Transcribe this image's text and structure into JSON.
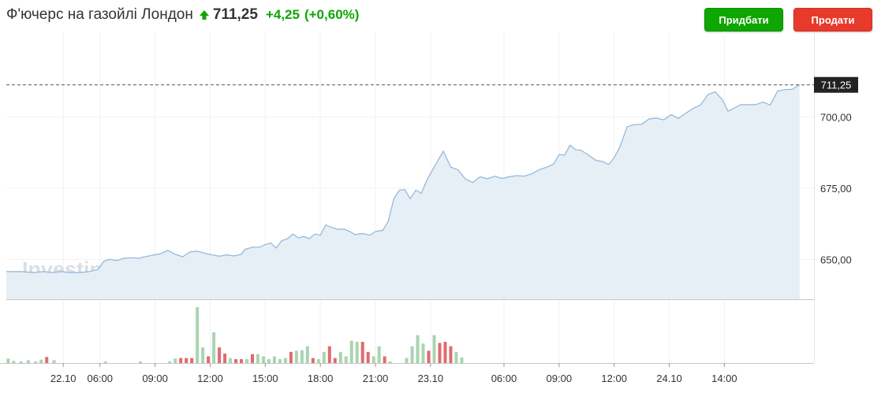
{
  "header": {
    "title": "Ф'ючерс на газойлі Лондон",
    "price": "711,25",
    "change": "+4,25",
    "change_pct": "(+0,60%)",
    "buy_label": "Придбати",
    "sell_label": "Продати"
  },
  "colors": {
    "up": "#0ea600",
    "down": "#e83a2b",
    "line": "#8fb6d8",
    "area": "#e6eef6",
    "vol_up": "#a8d5b0",
    "vol_down": "#df6b6f"
  },
  "watermark": "Investing.com",
  "chart_data": {
    "type": "area",
    "title": "",
    "xlabel": "",
    "ylabel": "",
    "ylim": [
      636,
      725
    ],
    "yticks": [
      650,
      675,
      700
    ],
    "ytick_labels": [
      "650,00",
      "675,00",
      "700,00"
    ],
    "last_value": 711.25,
    "last_value_label": "711,25",
    "xticks": [
      {
        "t": 22.1,
        "label": "22.10"
      },
      {
        "t": 24.1,
        "label": "06:00"
      },
      {
        "t": 27.1,
        "label": "09:00"
      },
      {
        "t": 30.1,
        "label": "12:00"
      },
      {
        "t": 33.1,
        "label": "15:00"
      },
      {
        "t": 36.1,
        "label": "18:00"
      },
      {
        "t": 39.1,
        "label": "21:00"
      },
      {
        "t": 42.1,
        "label": "23.10"
      },
      {
        "t": 46.1,
        "label": "06:00"
      },
      {
        "t": 49.1,
        "label": "09:00"
      },
      {
        "t": 52.1,
        "label": "12:00"
      },
      {
        "t": 55.1,
        "label": "24.10"
      },
      {
        "t": 58.1,
        "label": "14:00"
      }
    ],
    "series": [
      {
        "values": [
          [
            19.0,
            645.7
          ],
          [
            19.8,
            645.7
          ],
          [
            20.5,
            645.4
          ],
          [
            21.0,
            645.7
          ],
          [
            21.5,
            645.4
          ],
          [
            22.0,
            645.7
          ],
          [
            22.5,
            645.4
          ],
          [
            23.0,
            645.4
          ],
          [
            23.5,
            645.7
          ],
          [
            24.0,
            646.5
          ],
          [
            24.3,
            649.3
          ],
          [
            24.6,
            650.0
          ],
          [
            25.0,
            649.6
          ],
          [
            25.4,
            650.4
          ],
          [
            25.8,
            650.6
          ],
          [
            26.2,
            650.4
          ],
          [
            26.6,
            651.0
          ],
          [
            27.0,
            651.5
          ],
          [
            27.4,
            652.0
          ],
          [
            27.8,
            653.2
          ],
          [
            28.2,
            651.8
          ],
          [
            28.6,
            650.9
          ],
          [
            29.0,
            652.6
          ],
          [
            29.4,
            652.9
          ],
          [
            29.8,
            652.2
          ],
          [
            30.2,
            651.6
          ],
          [
            30.6,
            651.1
          ],
          [
            31.0,
            651.6
          ],
          [
            31.4,
            651.2
          ],
          [
            31.8,
            651.8
          ],
          [
            32.0,
            653.5
          ],
          [
            32.4,
            654.3
          ],
          [
            32.8,
            654.3
          ],
          [
            33.1,
            655.2
          ],
          [
            33.4,
            655.8
          ],
          [
            33.7,
            654.0
          ],
          [
            34.0,
            656.6
          ],
          [
            34.3,
            657.2
          ],
          [
            34.6,
            658.9
          ],
          [
            34.9,
            657.6
          ],
          [
            35.2,
            658.0
          ],
          [
            35.5,
            657.3
          ],
          [
            35.8,
            658.9
          ],
          [
            36.1,
            658.5
          ],
          [
            36.4,
            662.1
          ],
          [
            36.7,
            661.3
          ],
          [
            37.0,
            660.6
          ],
          [
            37.4,
            660.6
          ],
          [
            37.7,
            659.8
          ],
          [
            38.0,
            658.7
          ],
          [
            38.4,
            659.1
          ],
          [
            38.8,
            658.5
          ],
          [
            39.1,
            659.8
          ],
          [
            39.5,
            660.2
          ],
          [
            39.8,
            663.4
          ],
          [
            40.1,
            671.3
          ],
          [
            40.4,
            674.3
          ],
          [
            40.7,
            674.5
          ],
          [
            41.0,
            671.3
          ],
          [
            41.3,
            674.3
          ],
          [
            41.6,
            673.2
          ],
          [
            41.9,
            677.8
          ],
          [
            42.3,
            682.5
          ],
          [
            42.8,
            688.0
          ],
          [
            43.2,
            682.4
          ],
          [
            43.6,
            681.4
          ],
          [
            44.0,
            678.2
          ],
          [
            44.4,
            677.0
          ],
          [
            44.8,
            679.0
          ],
          [
            45.2,
            678.3
          ],
          [
            45.6,
            679.2
          ],
          [
            46.0,
            678.4
          ],
          [
            46.4,
            679.0
          ],
          [
            46.8,
            679.4
          ],
          [
            47.2,
            679.2
          ],
          [
            47.6,
            680.0
          ],
          [
            48.0,
            681.4
          ],
          [
            48.4,
            682.3
          ],
          [
            48.8,
            683.4
          ],
          [
            49.1,
            686.8
          ],
          [
            49.4,
            686.6
          ],
          [
            49.7,
            690.1
          ],
          [
            50.0,
            688.5
          ],
          [
            50.3,
            688.3
          ],
          [
            50.7,
            686.6
          ],
          [
            51.1,
            684.8
          ],
          [
            51.5,
            684.3
          ],
          [
            51.8,
            683.3
          ],
          [
            52.1,
            685.7
          ],
          [
            52.4,
            689.3
          ],
          [
            52.8,
            696.5
          ],
          [
            53.2,
            697.3
          ],
          [
            53.6,
            697.4
          ],
          [
            54.0,
            699.3
          ],
          [
            54.4,
            699.6
          ],
          [
            54.8,
            699.0
          ],
          [
            55.2,
            700.8
          ],
          [
            55.6,
            699.5
          ],
          [
            56.0,
            701.3
          ],
          [
            56.4,
            703.0
          ],
          [
            56.8,
            704.2
          ],
          [
            57.2,
            707.8
          ],
          [
            57.6,
            708.8
          ],
          [
            58.0,
            706.0
          ],
          [
            58.3,
            702.0
          ],
          [
            58.6,
            703.0
          ],
          [
            59.0,
            704.3
          ],
          [
            59.4,
            704.3
          ],
          [
            59.8,
            704.3
          ],
          [
            60.2,
            705.2
          ],
          [
            60.6,
            704.2
          ],
          [
            61.0,
            709.1
          ],
          [
            61.4,
            709.6
          ],
          [
            61.8,
            709.7
          ],
          [
            62.2,
            711.3
          ]
        ]
      },
      {
        "name": "Volume",
        "values": [
          [
            19.1,
            8,
            "u"
          ],
          [
            19.4,
            4,
            "u"
          ],
          [
            19.8,
            3,
            "u"
          ],
          [
            20.2,
            5,
            "u"
          ],
          [
            20.6,
            3,
            "u"
          ],
          [
            20.9,
            6,
            "u"
          ],
          [
            21.2,
            11,
            "d"
          ],
          [
            21.6,
            5,
            "u"
          ],
          [
            24.4,
            3,
            "u"
          ],
          [
            26.3,
            3,
            "u"
          ],
          [
            27.9,
            3,
            "u"
          ],
          [
            28.2,
            8,
            "u"
          ],
          [
            28.5,
            9,
            "d"
          ],
          [
            28.8,
            9,
            "d"
          ],
          [
            29.1,
            9,
            "d"
          ],
          [
            29.4,
            100,
            "u"
          ],
          [
            29.7,
            28,
            "u"
          ],
          [
            30.0,
            12,
            "d"
          ],
          [
            30.3,
            55,
            "u"
          ],
          [
            30.6,
            28,
            "d"
          ],
          [
            30.9,
            17,
            "d"
          ],
          [
            31.2,
            9,
            "u"
          ],
          [
            31.5,
            7,
            "d"
          ],
          [
            31.8,
            7,
            "d"
          ],
          [
            32.1,
            7,
            "u"
          ],
          [
            32.4,
            16,
            "d"
          ],
          [
            32.7,
            16,
            "u"
          ],
          [
            33.0,
            12,
            "u"
          ],
          [
            33.3,
            7,
            "u"
          ],
          [
            33.6,
            12,
            "u"
          ],
          [
            33.9,
            7,
            "u"
          ],
          [
            34.2,
            9,
            "u"
          ],
          [
            34.5,
            20,
            "d"
          ],
          [
            34.8,
            22,
            "u"
          ],
          [
            35.1,
            23,
            "u"
          ],
          [
            35.4,
            30,
            "u"
          ],
          [
            35.7,
            9,
            "d"
          ],
          [
            36.0,
            7,
            "u"
          ],
          [
            36.3,
            20,
            "u"
          ],
          [
            36.6,
            30,
            "d"
          ],
          [
            36.9,
            9,
            "d"
          ],
          [
            37.2,
            20,
            "u"
          ],
          [
            37.5,
            12,
            "u"
          ],
          [
            37.8,
            40,
            "u"
          ],
          [
            38.1,
            38,
            "u"
          ],
          [
            38.4,
            38,
            "d"
          ],
          [
            38.7,
            20,
            "d"
          ],
          [
            39.0,
            12,
            "u"
          ],
          [
            39.3,
            30,
            "u"
          ],
          [
            39.6,
            12,
            "d"
          ],
          [
            39.9,
            3,
            "u"
          ],
          [
            40.8,
            9,
            "u"
          ],
          [
            41.1,
            30,
            "u"
          ],
          [
            41.4,
            50,
            "u"
          ],
          [
            41.7,
            35,
            "u"
          ],
          [
            42.0,
            22,
            "d"
          ],
          [
            42.3,
            50,
            "u"
          ],
          [
            42.6,
            36,
            "d"
          ],
          [
            42.9,
            38,
            "d"
          ],
          [
            43.2,
            30,
            "d"
          ],
          [
            43.5,
            20,
            "u"
          ],
          [
            43.8,
            10,
            "u"
          ]
        ]
      }
    ],
    "volume_ymax": 100
  }
}
